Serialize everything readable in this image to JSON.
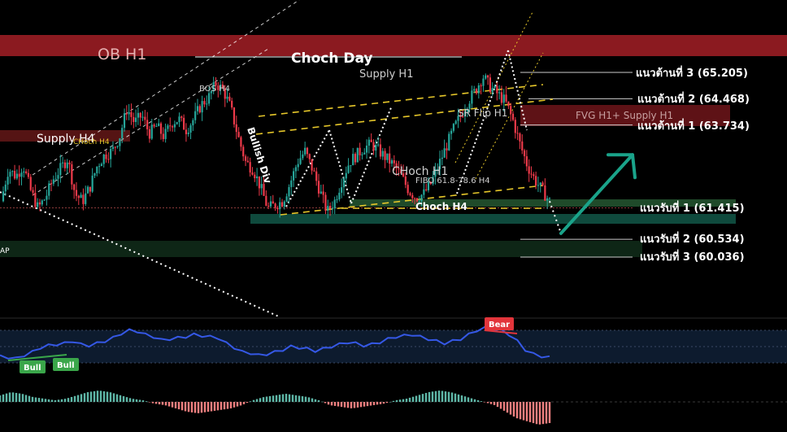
{
  "chart_data": {
    "type": "candlestick",
    "zones": {
      "ob_h1": "OB H1",
      "supply_h4": "Supply H4",
      "fvg_h1_supply_h1": "FVG H1+ Supply H1",
      "fvg_left": "AP"
    },
    "annotations": {
      "choch_day": "Choch Day",
      "supply_h1": "Supply H1",
      "bos_h4": "BOS H4",
      "choch_h4_small": "CHoch H4",
      "bullish_div": "Bullish Div",
      "sr_flip_h1": "SR Flip H1",
      "choch_h1": "CHoch H1",
      "fibo": "FIBO 61.8-78.6 H4",
      "choch_h4": "Choch H4"
    },
    "levels": [
      {
        "label": "แนวต้านที่ 3 (65.205)",
        "value": 65.205,
        "kind": "resistance"
      },
      {
        "label": "แนวต้านที่ 2 (64.468)",
        "value": 64.468,
        "kind": "resistance"
      },
      {
        "label": "แนวต้านที่ 1 (63.734)",
        "value": 63.734,
        "kind": "resistance"
      },
      {
        "label": "แนวรับที่ 1 (61.415)",
        "value": 61.415,
        "kind": "support"
      },
      {
        "label": "แนวรับที่ 2 (60.534)",
        "value": 60.534,
        "kind": "support"
      },
      {
        "label": "แนวรับที่ 3 (60.036)",
        "value": 60.036,
        "kind": "support"
      }
    ],
    "price_path": [
      61.6,
      62.5,
      62.3,
      62.6,
      61.9,
      61.4,
      61.7,
      62.2,
      62.5,
      62.8,
      61.8,
      61.6,
      62.0,
      62.6,
      62.9,
      63.0,
      63.4,
      64.2,
      63.8,
      64.0,
      63.5,
      63.7,
      63.4,
      63.8,
      63.9,
      63.6,
      63.9,
      64.3,
      64.5,
      64.9,
      64.7,
      64.2,
      63.4,
      62.7,
      62.5,
      62.0,
      61.4,
      61.5,
      61.6,
      62.1,
      62.7,
      63.0,
      62.5,
      61.9,
      61.3,
      61.6,
      62.2,
      62.7,
      62.9,
      63.1,
      63.2,
      63.0,
      62.8,
      62.6,
      62.3,
      61.9,
      61.7,
      61.8,
      62.1,
      62.6,
      63.1,
      63.6,
      64.0,
      64.4,
      64.7,
      65.1,
      64.8,
      64.6,
      64.4,
      63.9,
      63.2,
      62.6,
      62.2,
      61.9,
      61.6
    ],
    "projection_path": [
      61.6,
      60.7
    ],
    "arrow": {
      "from": 60.7,
      "to": 62.9
    },
    "rsi_labels": {
      "bull1": "Bull",
      "bull2": "Bull",
      "bear": "Bear"
    },
    "rsi_path": [
      46,
      45,
      44,
      47,
      50,
      54,
      56,
      57,
      58,
      60,
      57,
      56,
      58,
      60,
      63,
      67,
      70,
      69,
      66,
      64,
      61,
      62,
      63,
      64,
      66,
      65,
      64,
      63,
      58,
      54,
      50,
      49,
      47,
      48,
      50,
      52,
      55,
      54,
      53,
      51,
      53,
      55,
      57,
      59,
      58,
      56,
      57,
      59,
      62,
      64,
      65,
      66,
      64,
      62,
      60,
      58,
      60,
      62,
      66,
      70,
      72,
      71,
      70,
      66,
      60,
      52,
      48,
      46,
      45
    ],
    "macd_hist": [
      0.2,
      0.3,
      0.25,
      0.15,
      0.1,
      0.05,
      0.1,
      0.2,
      0.3,
      0.35,
      0.3,
      0.2,
      0.1,
      0.05,
      -0.05,
      -0.1,
      -0.2,
      -0.3,
      -0.35,
      -0.3,
      -0.25,
      -0.2,
      -0.1,
      0.05,
      0.15,
      0.2,
      0.25,
      0.2,
      0.15,
      0.05,
      -0.1,
      -0.15,
      -0.2,
      -0.15,
      -0.1,
      -0.05,
      0.05,
      0.1,
      0.2,
      0.3,
      0.35,
      0.3,
      0.2,
      0.1,
      0.0,
      -0.1,
      -0.3,
      -0.5,
      -0.6,
      -0.7,
      -0.65
    ]
  }
}
